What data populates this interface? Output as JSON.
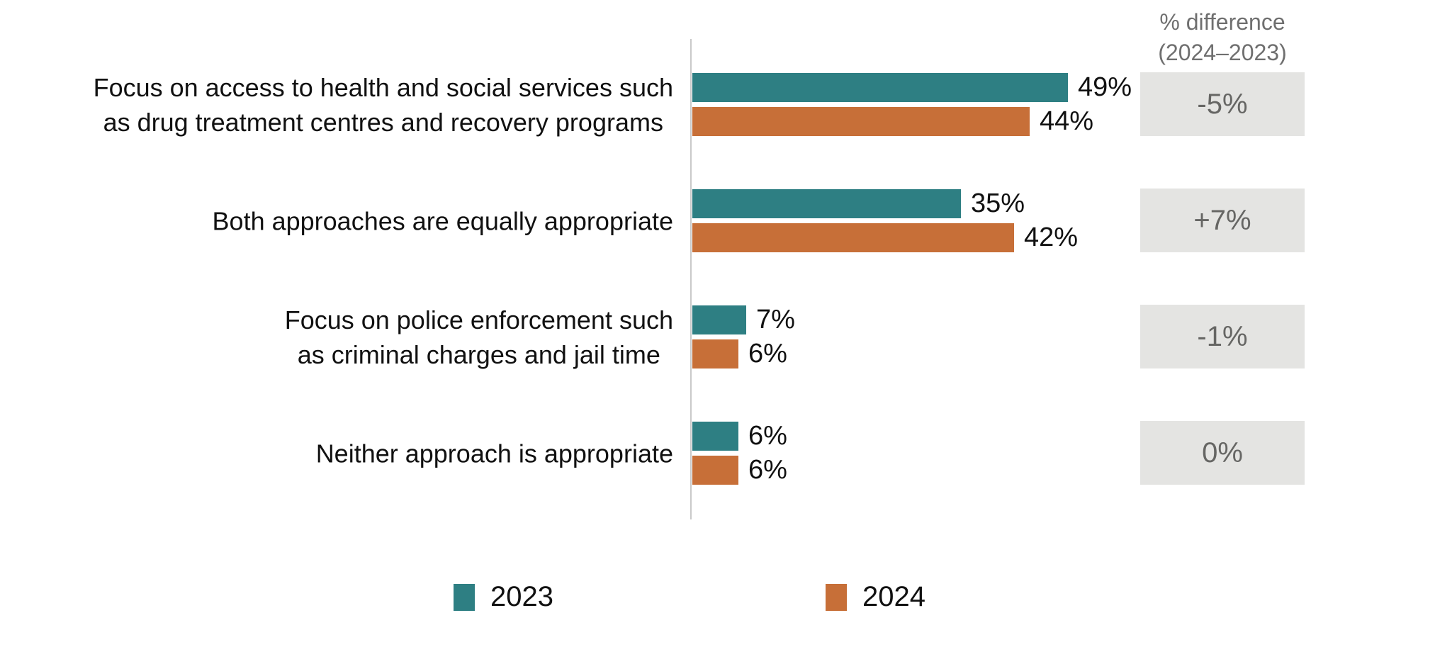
{
  "chart_data": {
    "type": "bar",
    "orientation": "horizontal",
    "title": "",
    "xlabel": "",
    "ylabel": "",
    "grid": false,
    "legend_position": "bottom",
    "value_suffix": "%",
    "categories": [
      {
        "lines": [
          "Focus on access to health and social services such",
          "as drug treatment centres and recovery programs"
        ]
      },
      {
        "lines": [
          "Both approaches are equally appropriate"
        ]
      },
      {
        "lines": [
          "Focus on police enforcement such",
          "as criminal charges and jail time"
        ]
      },
      {
        "lines": [
          "Neither approach is appropriate"
        ]
      }
    ],
    "series": [
      {
        "name": "2023",
        "color": "#2e7f83",
        "values": [
          49,
          35,
          7,
          6
        ],
        "labels": [
          "49%",
          "35%",
          "7%",
          "6%"
        ]
      },
      {
        "name": "2024",
        "color": "#c76f38",
        "values": [
          44,
          42,
          6,
          6
        ],
        "labels": [
          "44%",
          "42%",
          "6%",
          "6%"
        ]
      }
    ],
    "difference_column": {
      "header_line1": "% difference",
      "header_line2": "(2024–2023)",
      "values": [
        "-5%",
        "+7%",
        "-1%",
        "0%"
      ],
      "box_color": "#e4e4e2",
      "text_color": "#666664"
    }
  },
  "colors": {
    "series_2023": "#2e7f83",
    "series_2024": "#c76f38",
    "axis_line": "#c9c9c9",
    "label_text": "#111111",
    "header_text": "#6f6f6f"
  }
}
